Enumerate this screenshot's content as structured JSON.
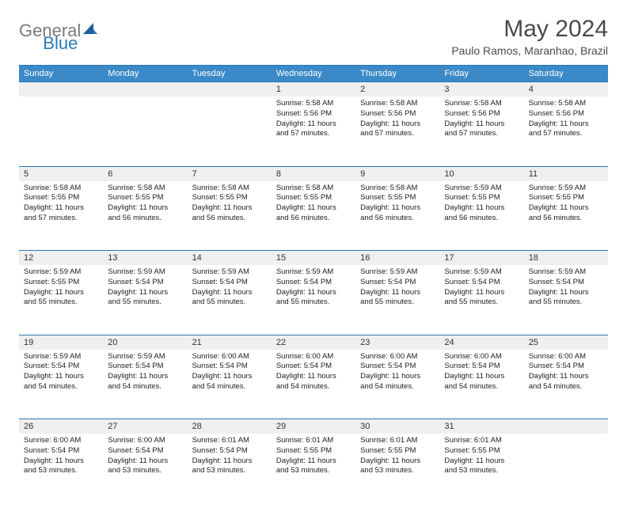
{
  "logo": {
    "text1": "General",
    "text2": "Blue"
  },
  "title": "May 2024",
  "subtitle": "Paulo Ramos, Maranhao, Brazil",
  "header_bg": "#3b89c7",
  "border_color": "#2a77b5",
  "daynum_bg": "#efefef",
  "days": [
    "Sunday",
    "Monday",
    "Tuesday",
    "Wednesday",
    "Thursday",
    "Friday",
    "Saturday"
  ],
  "weeks": [
    [
      null,
      null,
      null,
      {
        "n": "1",
        "sr": "5:58 AM",
        "ss": "5:56 PM",
        "dl": "11 hours and 57 minutes."
      },
      {
        "n": "2",
        "sr": "5:58 AM",
        "ss": "5:56 PM",
        "dl": "11 hours and 57 minutes."
      },
      {
        "n": "3",
        "sr": "5:58 AM",
        "ss": "5:56 PM",
        "dl": "11 hours and 57 minutes."
      },
      {
        "n": "4",
        "sr": "5:58 AM",
        "ss": "5:56 PM",
        "dl": "11 hours and 57 minutes."
      }
    ],
    [
      {
        "n": "5",
        "sr": "5:58 AM",
        "ss": "5:55 PM",
        "dl": "11 hours and 57 minutes."
      },
      {
        "n": "6",
        "sr": "5:58 AM",
        "ss": "5:55 PM",
        "dl": "11 hours and 56 minutes."
      },
      {
        "n": "7",
        "sr": "5:58 AM",
        "ss": "5:55 PM",
        "dl": "11 hours and 56 minutes."
      },
      {
        "n": "8",
        "sr": "5:58 AM",
        "ss": "5:55 PM",
        "dl": "11 hours and 56 minutes."
      },
      {
        "n": "9",
        "sr": "5:58 AM",
        "ss": "5:55 PM",
        "dl": "11 hours and 56 minutes."
      },
      {
        "n": "10",
        "sr": "5:59 AM",
        "ss": "5:55 PM",
        "dl": "11 hours and 56 minutes."
      },
      {
        "n": "11",
        "sr": "5:59 AM",
        "ss": "5:55 PM",
        "dl": "11 hours and 56 minutes."
      }
    ],
    [
      {
        "n": "12",
        "sr": "5:59 AM",
        "ss": "5:55 PM",
        "dl": "11 hours and 55 minutes."
      },
      {
        "n": "13",
        "sr": "5:59 AM",
        "ss": "5:54 PM",
        "dl": "11 hours and 55 minutes."
      },
      {
        "n": "14",
        "sr": "5:59 AM",
        "ss": "5:54 PM",
        "dl": "11 hours and 55 minutes."
      },
      {
        "n": "15",
        "sr": "5:59 AM",
        "ss": "5:54 PM",
        "dl": "11 hours and 55 minutes."
      },
      {
        "n": "16",
        "sr": "5:59 AM",
        "ss": "5:54 PM",
        "dl": "11 hours and 55 minutes."
      },
      {
        "n": "17",
        "sr": "5:59 AM",
        "ss": "5:54 PM",
        "dl": "11 hours and 55 minutes."
      },
      {
        "n": "18",
        "sr": "5:59 AM",
        "ss": "5:54 PM",
        "dl": "11 hours and 55 minutes."
      }
    ],
    [
      {
        "n": "19",
        "sr": "5:59 AM",
        "ss": "5:54 PM",
        "dl": "11 hours and 54 minutes."
      },
      {
        "n": "20",
        "sr": "5:59 AM",
        "ss": "5:54 PM",
        "dl": "11 hours and 54 minutes."
      },
      {
        "n": "21",
        "sr": "6:00 AM",
        "ss": "5:54 PM",
        "dl": "11 hours and 54 minutes."
      },
      {
        "n": "22",
        "sr": "6:00 AM",
        "ss": "5:54 PM",
        "dl": "11 hours and 54 minutes."
      },
      {
        "n": "23",
        "sr": "6:00 AM",
        "ss": "5:54 PM",
        "dl": "11 hours and 54 minutes."
      },
      {
        "n": "24",
        "sr": "6:00 AM",
        "ss": "5:54 PM",
        "dl": "11 hours and 54 minutes."
      },
      {
        "n": "25",
        "sr": "6:00 AM",
        "ss": "5:54 PM",
        "dl": "11 hours and 54 minutes."
      }
    ],
    [
      {
        "n": "26",
        "sr": "6:00 AM",
        "ss": "5:54 PM",
        "dl": "11 hours and 53 minutes."
      },
      {
        "n": "27",
        "sr": "6:00 AM",
        "ss": "5:54 PM",
        "dl": "11 hours and 53 minutes."
      },
      {
        "n": "28",
        "sr": "6:01 AM",
        "ss": "5:54 PM",
        "dl": "11 hours and 53 minutes."
      },
      {
        "n": "29",
        "sr": "6:01 AM",
        "ss": "5:55 PM",
        "dl": "11 hours and 53 minutes."
      },
      {
        "n": "30",
        "sr": "6:01 AM",
        "ss": "5:55 PM",
        "dl": "11 hours and 53 minutes."
      },
      {
        "n": "31",
        "sr": "6:01 AM",
        "ss": "5:55 PM",
        "dl": "11 hours and 53 minutes."
      },
      null
    ]
  ],
  "labels": {
    "sunrise": "Sunrise:",
    "sunset": "Sunset:",
    "daylight": "Daylight:"
  }
}
